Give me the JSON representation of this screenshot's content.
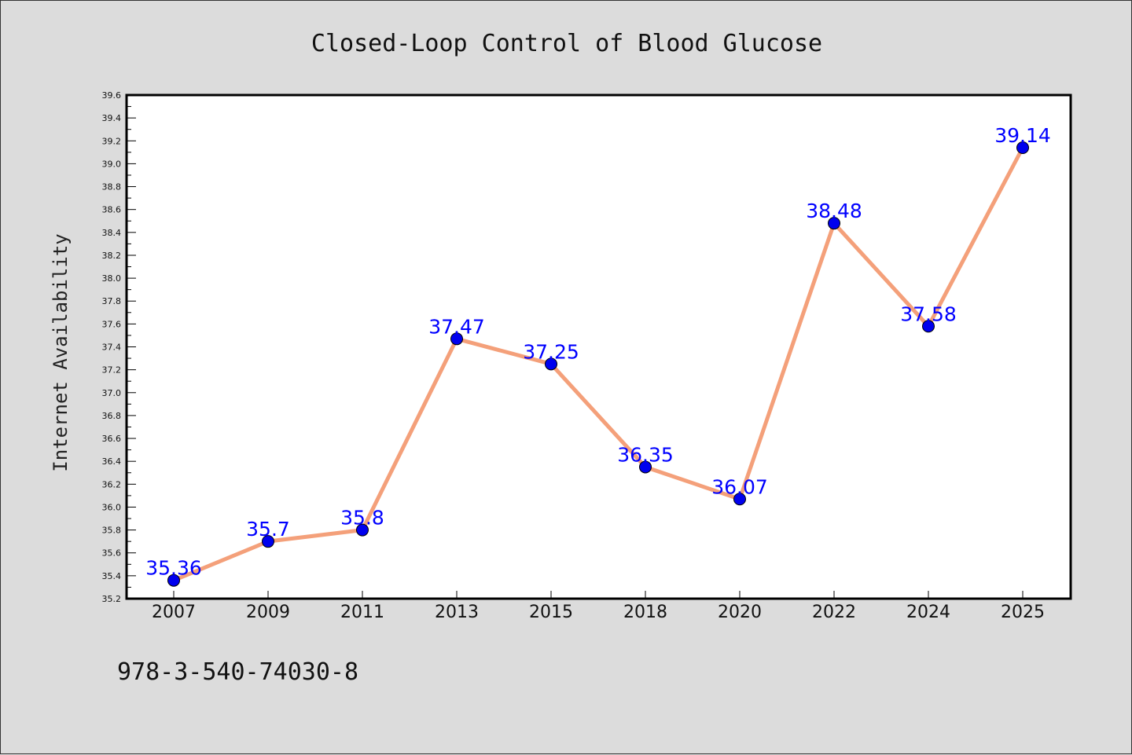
{
  "chart_data": {
    "type": "line",
    "title": "Closed-Loop Control of Blood Glucose",
    "xlabel": "",
    "ylabel": "Internet Availability",
    "categories": [
      "2007",
      "2009",
      "2011",
      "2013",
      "2015",
      "2018",
      "2020",
      "2022",
      "2024",
      "2025"
    ],
    "values": [
      35.36,
      35.7,
      35.8,
      37.47,
      37.25,
      36.35,
      36.07,
      38.48,
      37.58,
      39.14
    ],
    "data_labels": [
      "35.36",
      "35.7",
      "35.8",
      "37.47",
      "37.25",
      "36.35",
      "36.07",
      "38.48",
      "37.58",
      "39.14"
    ],
    "ylim": [
      35.2,
      39.6
    ],
    "yticks": [
      "35.2",
      "35.4",
      "35.6",
      "35.8",
      "36.0",
      "36.2",
      "36.4",
      "36.6",
      "36.8",
      "37.0",
      "37.2",
      "37.4",
      "37.6",
      "37.8",
      "38.0",
      "38.2",
      "38.4",
      "38.6",
      "38.8",
      "39.0",
      "39.2",
      "39.4",
      "39.6"
    ],
    "grid": false,
    "legend": "none",
    "colors": {
      "line": "#f4a07a",
      "marker": "#0000ee",
      "label": "#0000ff",
      "background": "#dcdcdc",
      "plot_background": "#ffffff"
    }
  },
  "footer": {
    "text": "978-3-540-74030-8"
  }
}
